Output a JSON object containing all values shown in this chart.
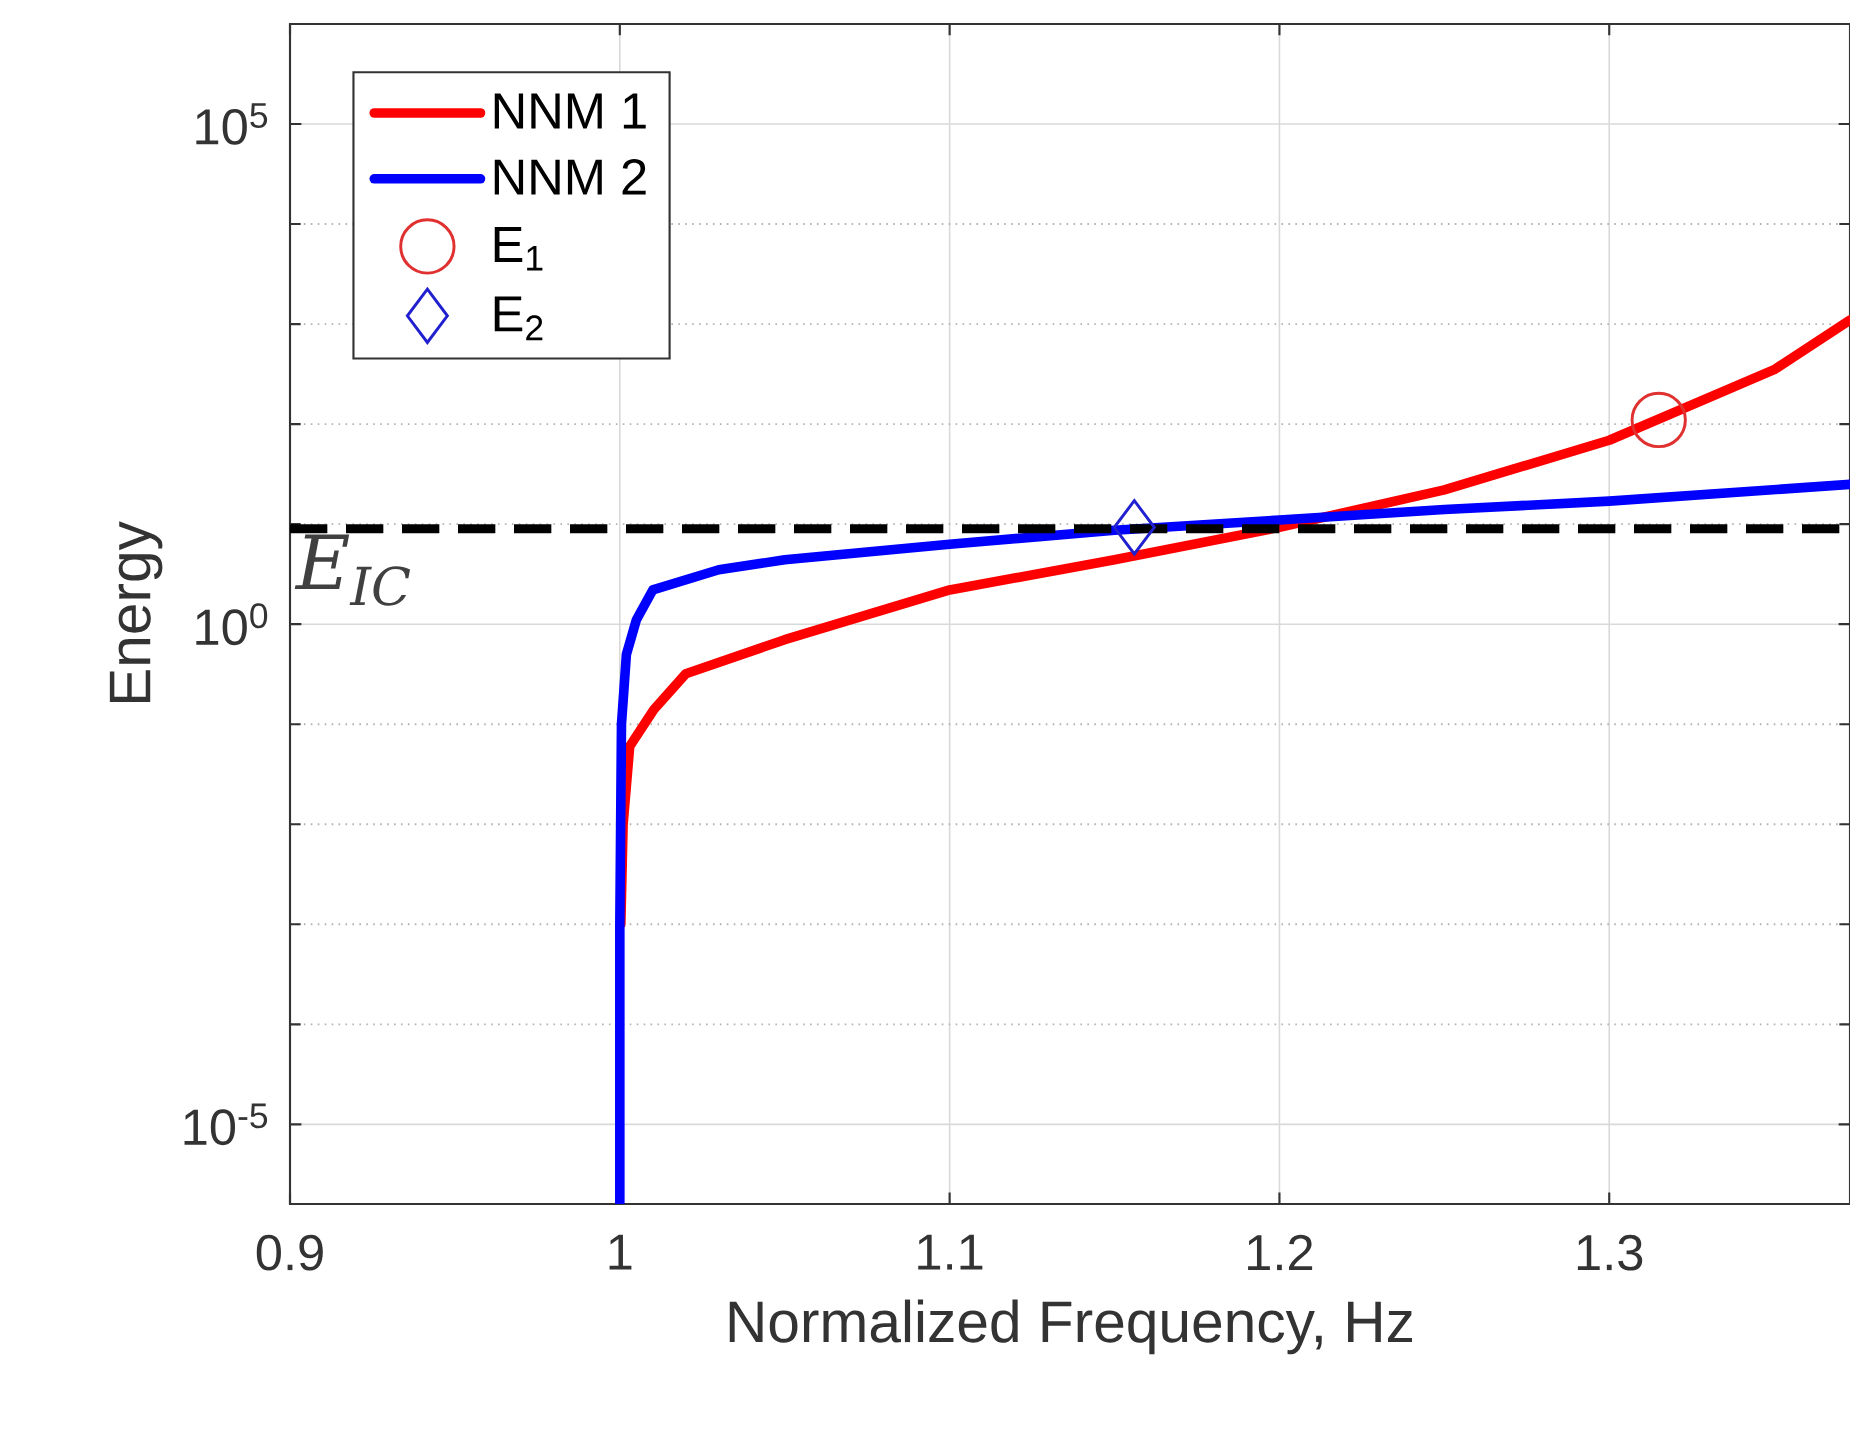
{
  "chart_data": {
    "type": "line",
    "xlabel": "Normalized Frequency, Hz",
    "ylabel": "Energy",
    "log": "y",
    "grid": true,
    "legend": "top left",
    "xlim": [
      0.9,
      1.373
    ],
    "xticks": [
      0.9,
      1,
      1.1,
      1.2,
      1.3
    ],
    "ylim": [
      1.6e-06,
      1000000.0
    ],
    "yticks": [
      {
        "value": 1e-05,
        "label": "10$^{-5}$"
      },
      {
        "value": 1,
        "label": "10$^{0}$"
      },
      {
        "value": 100000.0,
        "label": "10$^{5}$"
      }
    ],
    "series": [
      {
        "name": "NNM 1",
        "color": "#ff0000",
        "marker": "none",
        "x": [
          1.0003,
          1.001,
          1.003,
          1.0103,
          1.02,
          1.05,
          1.1,
          1.15,
          1.2,
          1.25,
          1.3,
          1.35,
          1.373
        ],
        "values": [
          0.001,
          0.01,
          0.06,
          0.14,
          0.32,
          0.7,
          2.2,
          4.4,
          9.3,
          22,
          69,
          350,
          1100
        ]
      },
      {
        "name": "NNM 2",
        "color": "#0000ff",
        "marker": "none",
        "x": [
          1.0,
          1.0,
          1.0005,
          1.002,
          1.005,
          1.01,
          1.03,
          1.05,
          1.1,
          1.15,
          1.2,
          1.25,
          1.3,
          1.373
        ],
        "values": [
          1.6e-06,
          0.001,
          0.1,
          0.5,
          1.1,
          2.2,
          3.5,
          4.4,
          6.3,
          8.7,
          11,
          14,
          17,
          25
        ]
      },
      {
        "name": "E$_{1}$",
        "type": "scatter",
        "color": "#e03030",
        "marker": "circle",
        "x": [
          1.315
        ],
        "values": [
          110
        ]
      },
      {
        "name": "E$_{2}$",
        "type": "scatter",
        "color": "#2020d0",
        "marker": "diamond",
        "x": [
          1.156
        ],
        "values": [
          9.3
        ]
      }
    ],
    "ref_lines": [
      {
        "axis": "y",
        "value": 9,
        "label": "E$_{IC}$",
        "color": "#000000",
        "line_style": "dashed"
      }
    ]
  }
}
